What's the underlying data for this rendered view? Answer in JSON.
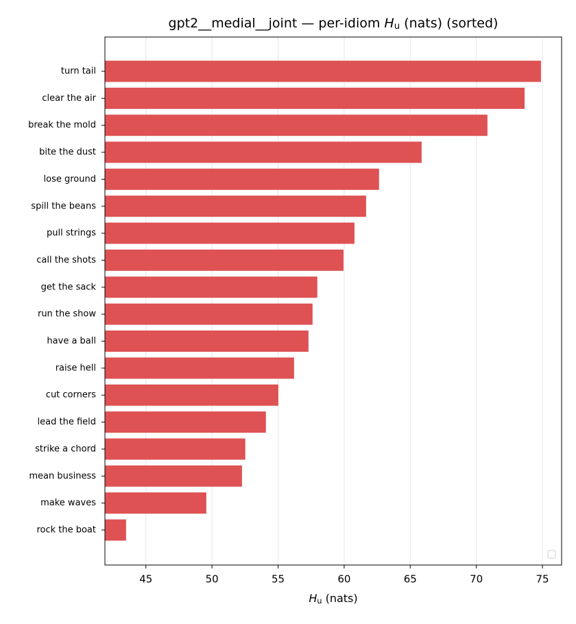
{
  "chart_data": {
    "type": "barh",
    "title": "gpt2__medial__joint — per-idiom Hu (nats) (sorted)",
    "xlabel": "Hu (nats)",
    "categories": [
      "turn tail",
      "clear the air",
      "break the mold",
      "bite the dust",
      "lose ground",
      "spill the beans",
      "pull strings",
      "call the shots",
      "get the sack",
      "run the show",
      "have a ball",
      "raise hell",
      "cut corners",
      "lead the field",
      "strike a chord",
      "mean business",
      "make waves",
      "rock the boat"
    ],
    "values": [
      74.89,
      73.65,
      70.84,
      65.86,
      62.64,
      61.66,
      60.78,
      59.95,
      57.97,
      57.61,
      57.3,
      56.21,
      55.02,
      54.08,
      52.52,
      52.27,
      49.57,
      43.5
    ],
    "color": "#de5253",
    "xlim": [
      41.9,
      76.45
    ],
    "xticks": [
      45,
      50,
      55,
      60,
      65,
      70,
      75
    ],
    "grid": true
  }
}
